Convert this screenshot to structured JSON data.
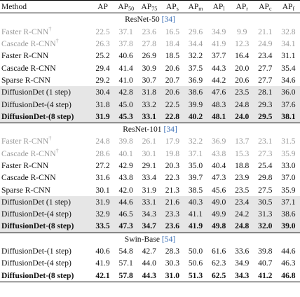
{
  "table": {
    "header": [
      {
        "main": "Method"
      },
      {
        "main": "AP"
      },
      {
        "main": "AP",
        "sub": "50"
      },
      {
        "main": "AP",
        "sub": "75"
      },
      {
        "main": "AP",
        "sub": "s"
      },
      {
        "main": "AP",
        "sub": "m"
      },
      {
        "main": "AP",
        "sub": "l"
      },
      {
        "main": "AP",
        "sub": "r"
      },
      {
        "main": "AP",
        "sub": "c"
      },
      {
        "main": "AP",
        "sub": "f"
      }
    ],
    "sections": [
      {
        "title": "ResNet-50",
        "ref": "[34]",
        "rows": [
          {
            "method": "Faster R-CNN",
            "mark": "†",
            "muted": true,
            "values": [
              22.5,
              37.1,
              23.6,
              16.5,
              29.6,
              34.9,
              9.9,
              21.1,
              32.8
            ]
          },
          {
            "method": "Cascade R-CNN",
            "mark": "†",
            "muted": true,
            "values": [
              26.3,
              37.8,
              27.8,
              18.4,
              34.4,
              41.9,
              12.3,
              24.9,
              34.1
            ]
          },
          {
            "method": "Faster R-CNN",
            "values": [
              25.2,
              40.6,
              26.9,
              18.5,
              32.2,
              37.7,
              16.4,
              23.4,
              31.1
            ]
          },
          {
            "method": "Cascade R-CNN",
            "values": [
              29.4,
              41.4,
              30.9,
              20.6,
              37.5,
              44.3,
              "20.0",
              27.7,
              35.4
            ]
          },
          {
            "method": "Sparse R-CNN",
            "values": [
              29.2,
              "41.0",
              30.7,
              20.7,
              36.9,
              44.2,
              20.6,
              27.7,
              34.6
            ]
          },
          {
            "method": "DiffusionDet (1 step)",
            "shaded": true,
            "values": [
              30.4,
              42.8,
              31.8,
              20.6,
              38.6,
              47.6,
              23.5,
              28.1,
              "36.0"
            ]
          },
          {
            "method": "DiffusionDet-(4 step)",
            "shaded": true,
            "values": [
              31.8,
              "45.0",
              33.2,
              22.5,
              39.9,
              48.3,
              24.8,
              29.3,
              37.6
            ]
          },
          {
            "method": "DiffusionDet-(8 step)",
            "shaded": true,
            "bold": true,
            "values": [
              31.9,
              45.3,
              33.1,
              22.8,
              40.2,
              48.1,
              "24.0",
              29.5,
              38.1
            ]
          }
        ]
      },
      {
        "title": "ResNet-101",
        "ref": "[34]",
        "rows": [
          {
            "method": "Faster R-CNN",
            "mark": "†",
            "muted": true,
            "values": [
              24.8,
              39.8,
              26.1,
              17.9,
              32.2,
              36.9,
              13.7,
              23.1,
              31.5
            ]
          },
          {
            "method": "Cascade R-CNN",
            "mark": "†",
            "muted": true,
            "values": [
              28.6,
              40.1,
              30.1,
              19.8,
              37.1,
              43.8,
              15.3,
              27.3,
              35.9
            ]
          },
          {
            "method": "Faster R-CNN",
            "values": [
              27.2,
              42.9,
              29.1,
              20.3,
              "35.0",
              40.4,
              18.8,
              25.4,
              "33.0"
            ]
          },
          {
            "method": "Cascade R-CNN",
            "values": [
              31.6,
              43.8,
              33.4,
              22.3,
              39.7,
              47.3,
              23.9,
              29.8,
              "37.0"
            ]
          },
          {
            "method": "Sparse R-CNN",
            "values": [
              30.1,
              "42.0",
              31.9,
              21.3,
              38.5,
              45.6,
              23.5,
              27.5,
              35.9
            ]
          },
          {
            "method": "DiffusionDet (1 step)",
            "shaded": true,
            "values": [
              31.9,
              44.6,
              33.1,
              21.6,
              40.3,
              "49.0",
              23.4,
              30.5,
              37.1
            ]
          },
          {
            "method": "DiffusionDet-(4 step)",
            "shaded": true,
            "values": [
              32.9,
              46.5,
              34.3,
              23.3,
              41.1,
              49.9,
              24.2,
              31.3,
              38.6
            ]
          },
          {
            "method": "DiffusionDet-(8 step)",
            "shaded": true,
            "bold": true,
            "values": [
              33.5,
              47.3,
              34.7,
              23.6,
              41.9,
              49.8,
              24.8,
              "32.0",
              "39.0"
            ]
          }
        ]
      },
      {
        "title": "Swin-Base",
        "ref": "[54]",
        "rows": [
          {
            "method": "DiffusionDet-(1 step)",
            "values": [
              40.6,
              54.8,
              42.7,
              28.3,
              "50.0",
              61.6,
              33.6,
              39.8,
              44.6
            ]
          },
          {
            "method": "DiffusionDet-(4 step)",
            "values": [
              41.9,
              57.1,
              "44.0",
              30.3,
              50.6,
              62.3,
              34.9,
              40.7,
              46.3
            ]
          },
          {
            "method": "DiffusionDet-(8 step)",
            "bold": true,
            "values": [
              42.1,
              57.8,
              44.3,
              "31.0",
              51.3,
              62.5,
              34.3,
              41.2,
              46.8
            ]
          }
        ]
      }
    ]
  }
}
